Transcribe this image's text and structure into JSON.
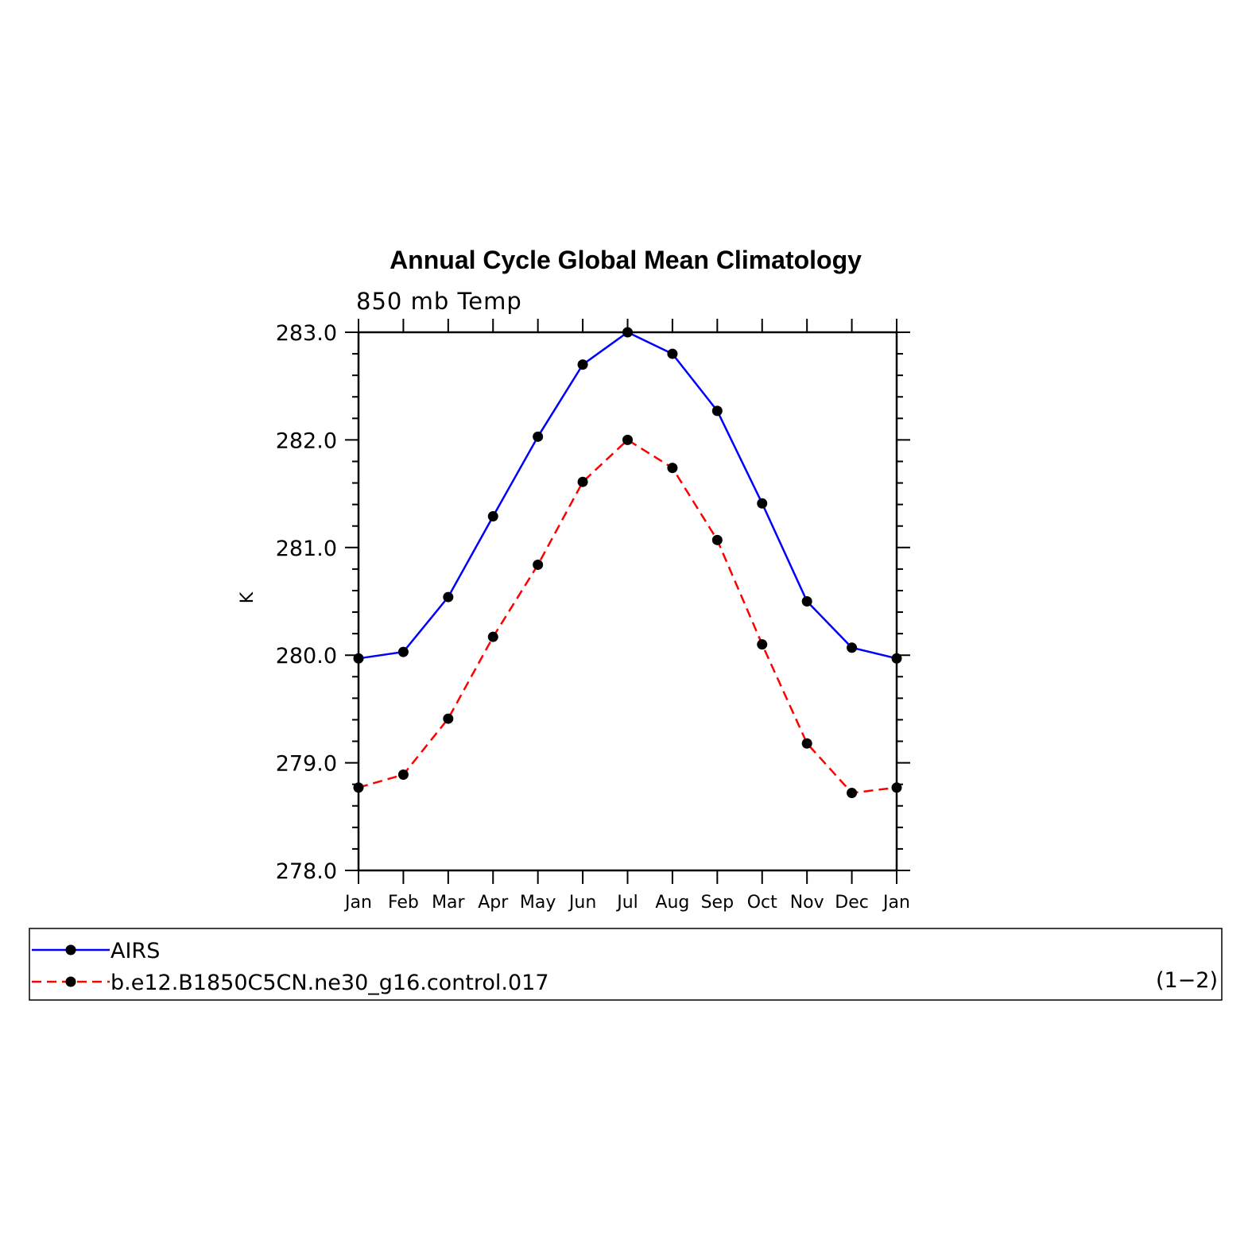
{
  "chart_data": {
    "type": "line",
    "title": "Annual Cycle Global Mean Climatology",
    "subtitle": "850 mb Temp",
    "ylabel": "K",
    "xlabel": "",
    "categories": [
      "Jan",
      "Feb",
      "Mar",
      "Apr",
      "May",
      "Jun",
      "Jul",
      "Aug",
      "Sep",
      "Oct",
      "Nov",
      "Dec",
      "Jan"
    ],
    "ylim": [
      278.0,
      283.0
    ],
    "yticks": [
      "278.0",
      "279.0",
      "280.0",
      "281.0",
      "282.0",
      "283.0"
    ],
    "grid": false,
    "legend_placement": "bottom",
    "panel_label": "(1−2)",
    "series": [
      {
        "name": "AIRS",
        "color": "#0000ff",
        "dash": "solid",
        "values": [
          279.97,
          280.03,
          280.54,
          281.29,
          282.03,
          282.7,
          283.0,
          282.8,
          282.27,
          281.41,
          280.5,
          280.07,
          279.97
        ]
      },
      {
        "name": "b.e12.B1850C5CN.ne30_g16.control.017",
        "color": "#ff0000",
        "dash": "dashed",
        "values": [
          278.77,
          278.89,
          279.41,
          280.17,
          280.84,
          281.61,
          282.0,
          281.74,
          281.07,
          280.1,
          279.18,
          278.72,
          278.77
        ]
      }
    ]
  }
}
